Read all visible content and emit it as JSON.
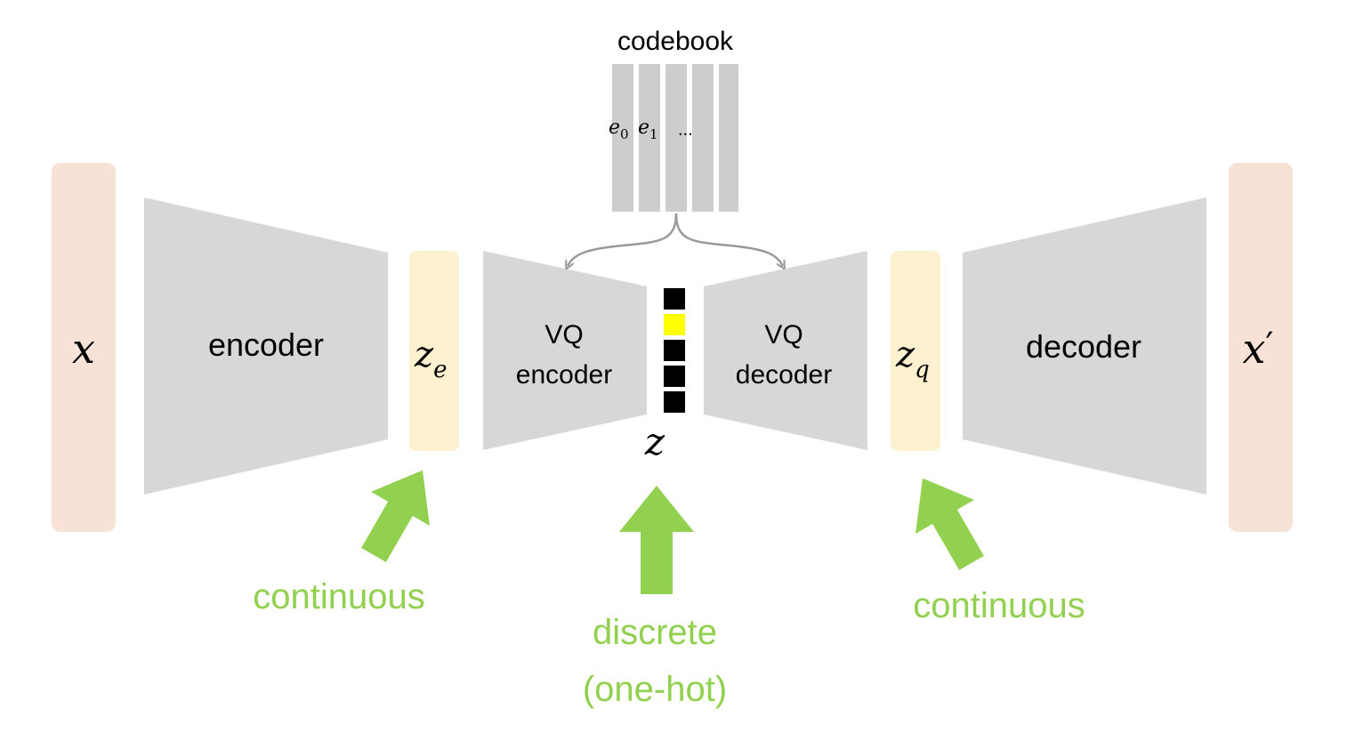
{
  "codebook": {
    "title": "codebook",
    "entry_0": "e",
    "entry_0_sub": "0",
    "entry_1": "e",
    "entry_1_sub": "1",
    "ellipsis": "..."
  },
  "input": {
    "symbol": "x"
  },
  "output": {
    "symbol": "x",
    "prime": "′"
  },
  "encoder": {
    "label": "encoder"
  },
  "decoder": {
    "label": "decoder"
  },
  "z_e": {
    "symbol": "z",
    "sub": "e"
  },
  "z_q": {
    "symbol": "z",
    "sub": "q"
  },
  "vq_encoder": {
    "line1": "VQ",
    "line2": "encoder"
  },
  "vq_decoder": {
    "line1": "VQ",
    "line2": "decoder"
  },
  "z": {
    "symbol": "z",
    "selected_index": 1,
    "num_slots": 5
  },
  "annotations": {
    "left": "continuous",
    "middle_line1": "discrete",
    "middle_line2": "(one-hot)",
    "right": "continuous"
  },
  "colors": {
    "io_block": "#F8E1D6",
    "latent_block": "#FEF1CF",
    "trapezoid": "#D7D7D7",
    "codebook_bar": "#CDCDCD",
    "arrow_green": "#92D050",
    "slot_black": "#000000",
    "slot_selected": "#FFFF00",
    "connector_gray": "#999999"
  }
}
